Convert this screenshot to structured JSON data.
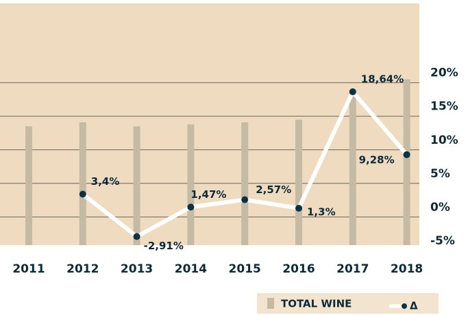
{
  "chart_data": {
    "type": "bar",
    "categories": [
      "2011",
      "2012",
      "2013",
      "2014",
      "2015",
      "2016",
      "2017",
      "2018"
    ],
    "series": [
      {
        "name": "TOTAL WINE",
        "type": "bar",
        "color": "#c5baa4",
        "values": [
          13.5,
          14.1,
          13.5,
          13.8,
          14.1,
          14.5,
          18.7,
          20.5
        ]
      },
      {
        "name": "Δ",
        "type": "line",
        "color": "#ffffff",
        "marker_color": "#0a3344",
        "values": [
          null,
          3.4,
          -2.91,
          1.47,
          2.57,
          1.3,
          18.64,
          9.28
        ],
        "value_labels": [
          null,
          "3,4%",
          "-2,91%",
          "1,47%",
          "2,57%",
          "1,3%",
          "18,64%",
          "9,28%"
        ]
      }
    ],
    "ylim": [
      -4.2,
      31.8
    ],
    "yticks": [
      {
        "value": -5,
        "label": "-5%"
      },
      {
        "value": 0,
        "label": "0%"
      },
      {
        "value": 5,
        "label": "5%"
      },
      {
        "value": 10,
        "label": "10%"
      },
      {
        "value": 15,
        "label": "15%"
      },
      {
        "value": 20,
        "label": "20%"
      }
    ],
    "grid": true,
    "background": "#efdcc0",
    "legend": "bottom-right"
  }
}
